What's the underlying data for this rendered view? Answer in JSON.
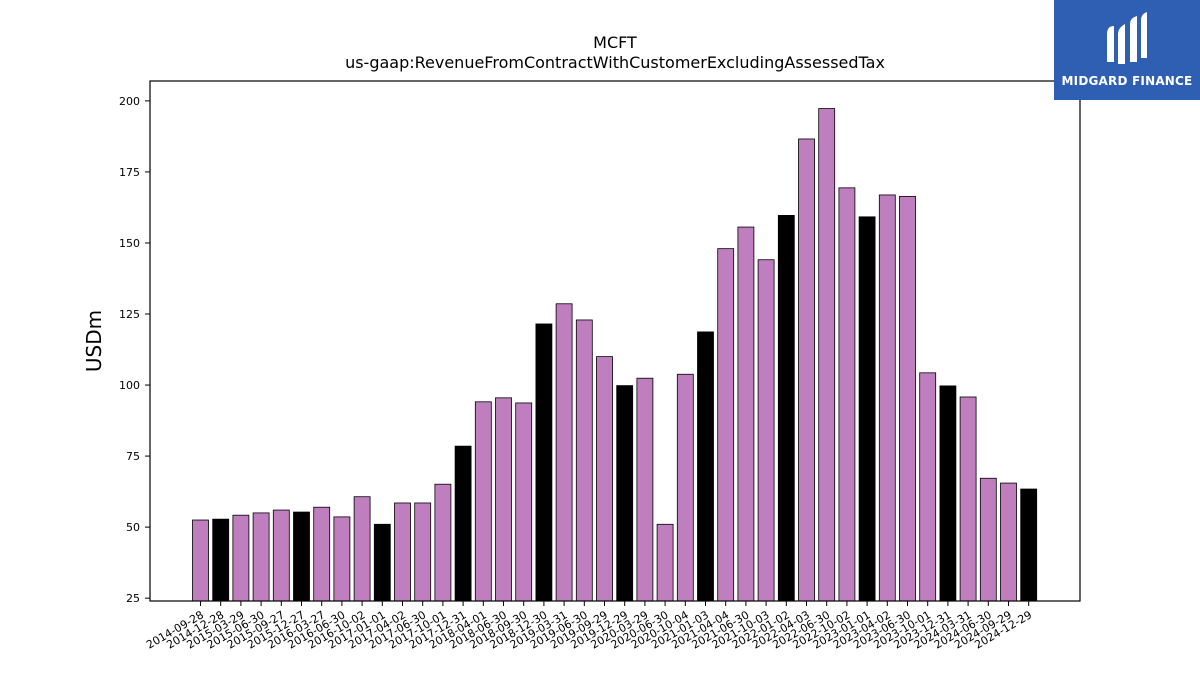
{
  "chart_data": {
    "type": "bar",
    "title": "MCFT",
    "subtitle": "us-gaap:RevenueFromContractWithCustomerExcludingAssessedTax",
    "xlabel": "",
    "ylabel": "USDm",
    "ylim": [
      24,
      207
    ],
    "yticks": [
      25,
      50,
      75,
      100,
      125,
      150,
      175,
      200
    ],
    "grid": false,
    "colors": {
      "quarter": "#bf7fbf",
      "annual": "#000000",
      "edge": "#000000"
    },
    "categories": [
      "2014-09-28",
      "2014-12-28",
      "2015-03-29",
      "2015-06-30",
      "2015-09-27",
      "2015-12-27",
      "2016-03-27",
      "2016-06-30",
      "2016-10-02",
      "2017-01-01",
      "2017-04-02",
      "2017-06-30",
      "2017-10-01",
      "2017-12-31",
      "2018-04-01",
      "2018-06-30",
      "2018-09-30",
      "2018-12-30",
      "2019-03-31",
      "2019-06-30",
      "2019-09-29",
      "2019-12-29",
      "2020-03-29",
      "2020-06-30",
      "2020-10-04",
      "2021-01-03",
      "2021-04-04",
      "2021-06-30",
      "2021-10-03",
      "2022-01-02",
      "2022-04-03",
      "2022-06-30",
      "2022-10-02",
      "2023-01-01",
      "2023-04-02",
      "2023-06-30",
      "2023-10-01",
      "2023-12-31",
      "2024-03-31",
      "2024-06-30",
      "2024-09-29",
      "2024-12-29"
    ],
    "values": [
      52.5,
      52.8,
      54.2,
      55.0,
      56.0,
      55.3,
      57.0,
      53.6,
      60.7,
      51.0,
      58.5,
      58.5,
      65.1,
      78.5,
      94.1,
      95.5,
      93.7,
      121.5,
      128.6,
      122.9,
      110.0,
      99.8,
      102.4,
      51.0,
      103.8,
      118.7,
      148.0,
      155.6,
      144.1,
      159.7,
      186.6,
      197.3,
      169.4,
      159.2,
      166.9,
      166.4,
      104.3,
      99.7,
      95.8,
      67.2,
      65.5,
      63.4
    ],
    "highlight": [
      false,
      true,
      false,
      false,
      false,
      true,
      false,
      false,
      false,
      true,
      false,
      false,
      false,
      true,
      false,
      false,
      false,
      true,
      false,
      false,
      false,
      true,
      false,
      false,
      false,
      true,
      false,
      false,
      false,
      true,
      false,
      false,
      false,
      true,
      false,
      false,
      false,
      true,
      false,
      false,
      false,
      true
    ]
  },
  "logo": {
    "text": "MIDGARD FINANCE",
    "icon": "midgard-m-logo-icon"
  }
}
